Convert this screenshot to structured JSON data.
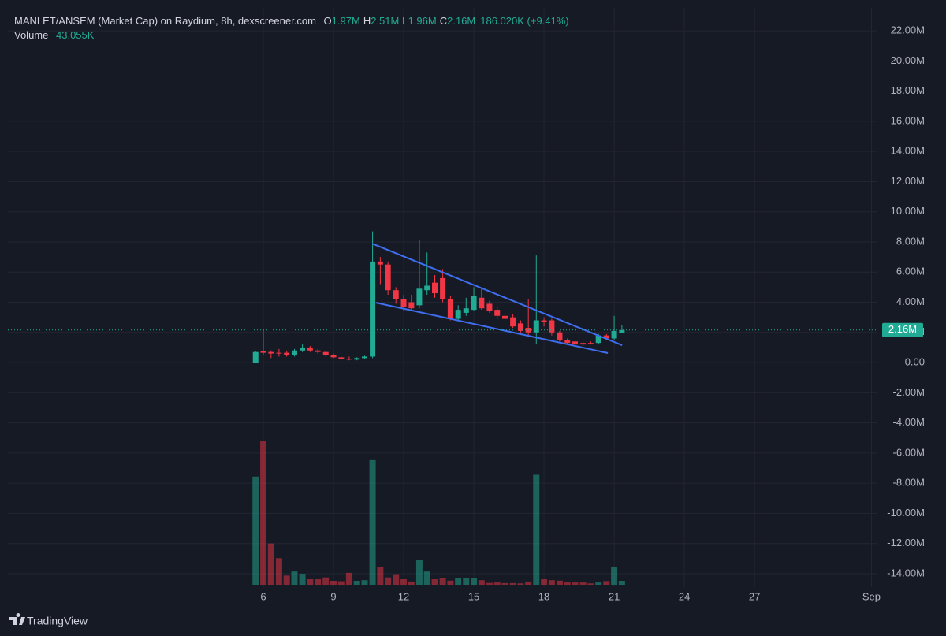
{
  "chart_data": {
    "type": "candlestick",
    "title": "MANLET/ANSEM (Market Cap) on Raydium, 8h, dexscreener.com",
    "readout": [
      {
        "key": "O",
        "text": "1.97M"
      },
      {
        "key": "H",
        "text": "2.51M"
      },
      {
        "key": "L",
        "text": "1.96M"
      },
      {
        "key": "C",
        "text": "2.16M"
      }
    ],
    "change": "186.020K (+9.41%)",
    "x": [
      5.67,
      6,
      6.33,
      6.67,
      7,
      7.33,
      7.67,
      8,
      8.33,
      8.67,
      9,
      9.33,
      9.67,
      10,
      10.33,
      10.67,
      11,
      11.33,
      11.67,
      12,
      12.33,
      12.67,
      13,
      13.33,
      13.67,
      14,
      14.33,
      14.67,
      15,
      15.33,
      15.67,
      16,
      16.33,
      16.67,
      17,
      17.33,
      17.67,
      18,
      18.33,
      18.67,
      19,
      19.33,
      19.67,
      20,
      20.33,
      20.67,
      21,
      21.33
    ],
    "open": [
      0,
      0.75,
      0.7,
      0.65,
      0.65,
      0.5,
      0.8,
      1.0,
      0.8,
      0.7,
      0.5,
      0.35,
      0.25,
      0.2,
      0.3,
      0.4,
      6.7,
      6.5,
      4.8,
      4.2,
      4.0,
      3.8,
      4.8,
      5.3,
      5.6,
      4.2,
      2.9,
      3.3,
      3.5,
      4.3,
      3.9,
      3.5,
      3.1,
      3.0,
      2.6,
      2.3,
      2.0,
      2.8,
      2.8,
      2.0,
      1.5,
      1.4,
      1.3,
      1.3,
      1.3,
      1.8,
      1.6,
      1.97
    ],
    "high": [
      0.75,
      2.2,
      0.8,
      0.9,
      0.8,
      0.9,
      1.2,
      1.1,
      0.9,
      0.8,
      0.6,
      0.4,
      0.4,
      0.35,
      0.45,
      8.7,
      7.0,
      6.7,
      5.0,
      4.5,
      4.5,
      8.1,
      7.3,
      5.8,
      6.2,
      4.4,
      3.8,
      4.3,
      5.0,
      5.0,
      4.1,
      3.7,
      3.3,
      3.2,
      2.8,
      4.2,
      7.1,
      3.0,
      2.9,
      2.1,
      1.6,
      1.5,
      1.4,
      1.4,
      1.9,
      1.9,
      3.1,
      2.51
    ],
    "low": [
      0,
      0.5,
      0.3,
      0.4,
      0.4,
      0.4,
      0.7,
      0.7,
      0.6,
      0.4,
      0.3,
      0.2,
      0.15,
      0.15,
      0.25,
      0.3,
      5.2,
      4.5,
      3.9,
      3.4,
      3.4,
      3.6,
      4.5,
      4.3,
      4.0,
      2.8,
      2.8,
      3.1,
      3.4,
      3.5,
      3.3,
      2.9,
      2.7,
      2.3,
      2.0,
      1.8,
      1.2,
      2.4,
      1.8,
      1.4,
      1.2,
      1.1,
      1.1,
      1.2,
      1.2,
      1.5,
      1.5,
      1.96
    ],
    "close": [
      0.7,
      0.65,
      0.6,
      0.6,
      0.5,
      0.8,
      1.0,
      0.8,
      0.7,
      0.5,
      0.35,
      0.25,
      0.2,
      0.3,
      0.4,
      6.7,
      6.5,
      4.8,
      4.2,
      3.7,
      3.6,
      4.9,
      5.1,
      4.6,
      4.2,
      2.9,
      3.5,
      3.6,
      4.4,
      3.6,
      3.4,
      3.1,
      2.9,
      2.4,
      2.1,
      2.0,
      2.8,
      2.7,
      2.0,
      1.5,
      1.3,
      1.2,
      1.2,
      1.25,
      1.8,
      1.6,
      2.1,
      2.16
    ],
    "up_color": "#22ab94",
    "down_color": "#f23645",
    "volume": {
      "name": "Volume",
      "values": [
        1180,
        1565,
        450,
        290,
        100,
        145,
        120,
        60,
        60,
        80,
        43,
        38,
        130,
        43,
        50,
        1360,
        190,
        80,
        115,
        60,
        35,
        275,
        145,
        60,
        70,
        45,
        75,
        70,
        75,
        50,
        20,
        25,
        18,
        18,
        15,
        35,
        1200,
        60,
        50,
        45,
        25,
        25,
        25,
        15,
        25,
        40,
        190,
        43.055
      ],
      "last_label": "43.055K"
    },
    "xlim": [
      -4.92,
      32.22
    ],
    "xticks": [
      6,
      9,
      12,
      15,
      18,
      21,
      24,
      27,
      {
        "value": 32,
        "label": "Sep"
      }
    ],
    "ylim": [
      -14.89,
      23.52
    ],
    "yticks": [
      {
        "value": 22,
        "label": "22.00M"
      },
      {
        "value": 20,
        "label": "20.00M"
      },
      {
        "value": 18,
        "label": "18.00M"
      },
      {
        "value": 16,
        "label": "16.00M"
      },
      {
        "value": 14,
        "label": "14.00M"
      },
      {
        "value": 12,
        "label": "12.00M"
      },
      {
        "value": 10,
        "label": "10.00M"
      },
      {
        "value": 8,
        "label": "8.00M"
      },
      {
        "value": 6,
        "label": "6.00M"
      },
      {
        "value": 4,
        "label": "4.00M"
      },
      {
        "value": 2,
        "label": "2.00M"
      },
      {
        "value": 0,
        "label": "0.00"
      },
      {
        "value": -2,
        "label": "-2.00M"
      },
      {
        "value": -4,
        "label": "-4.00M"
      },
      {
        "value": -6,
        "label": "-6.00M"
      },
      {
        "value": -8,
        "label": "-8.00M"
      },
      {
        "value": -10,
        "label": "-10.00M"
      },
      {
        "value": -12,
        "label": "-12.00M"
      },
      {
        "value": -14,
        "label": "-14.00M"
      }
    ],
    "last_price": {
      "value": 2.16,
      "label": "2.16M"
    },
    "trendlines": [
      {
        "color": "#3f6ff0",
        "x": [
          10.65,
          21.34
        ],
        "y": [
          7.89,
          1.15
        ]
      },
      {
        "color": "#3f6ff0",
        "x": [
          10.82,
          20.73
        ],
        "y": [
          3.97,
          0.63
        ]
      }
    ],
    "grid": true,
    "watermark": "TradingView"
  }
}
